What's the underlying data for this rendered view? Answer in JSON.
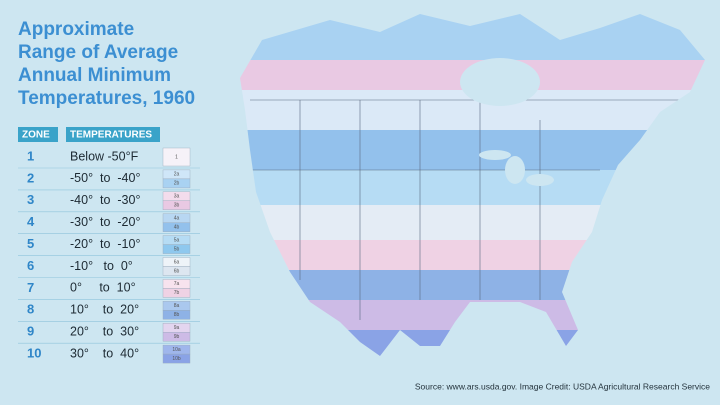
{
  "title_lines": [
    "Approximate",
    "Range of Average",
    "Annual Minimum",
    "Temperatures, 1960"
  ],
  "legend": {
    "headers": [
      "ZONE",
      "TEMPERATURES"
    ],
    "rows": [
      {
        "zone": "1",
        "temperature": "Below -50°F",
        "swatches": [
          {
            "label": "1",
            "color": "#f6f2f8"
          }
        ]
      },
      {
        "zone": "2",
        "temperature": "-50°  to  -40°",
        "swatches": [
          {
            "label": "2a",
            "color": "#cfe6f8"
          },
          {
            "label": "2b",
            "color": "#a9d2f2"
          }
        ]
      },
      {
        "zone": "3",
        "temperature": "-40°  to  -30°",
        "swatches": [
          {
            "label": "3a",
            "color": "#f3dcec"
          },
          {
            "label": "3b",
            "color": "#e9c9e3"
          }
        ]
      },
      {
        "zone": "4",
        "temperature": "-30°  to  -20°",
        "swatches": [
          {
            "label": "4a",
            "color": "#b8d7f2"
          },
          {
            "label": "4b",
            "color": "#93c1ec"
          }
        ]
      },
      {
        "zone": "5",
        "temperature": "-20°  to  -10°",
        "swatches": [
          {
            "label": "5a",
            "color": "#b6dcf4"
          },
          {
            "label": "5b",
            "color": "#8fc8ee"
          }
        ]
      },
      {
        "zone": "6",
        "temperature": "-10°   to  0°",
        "swatches": [
          {
            "label": "6a",
            "color": "#eef3f8"
          },
          {
            "label": "6b",
            "color": "#dde6f0"
          }
        ]
      },
      {
        "zone": "7",
        "temperature": "0°     to  10°",
        "swatches": [
          {
            "label": "7a",
            "color": "#f7e3ee"
          },
          {
            "label": "7b",
            "color": "#efd2e4"
          }
        ]
      },
      {
        "zone": "8",
        "temperature": "10°    to  20°",
        "swatches": [
          {
            "label": "8a",
            "color": "#aac8ee"
          },
          {
            "label": "8b",
            "color": "#8eb2e6"
          }
        ]
      },
      {
        "zone": "9",
        "temperature": "20°    to  30°",
        "swatches": [
          {
            "label": "9a",
            "color": "#e3d5ef"
          },
          {
            "label": "9b",
            "color": "#cdbbe6"
          }
        ]
      },
      {
        "zone": "10",
        "temperature": "30°    to  40°",
        "swatches": [
          {
            "label": "10a",
            "color": "#9fb6ec"
          },
          {
            "label": "10b",
            "color": "#8aa3e6"
          }
        ]
      }
    ]
  },
  "source": "Source: www.ars.usda.gov. Image Credit: USDA Agricultural Research Service"
}
